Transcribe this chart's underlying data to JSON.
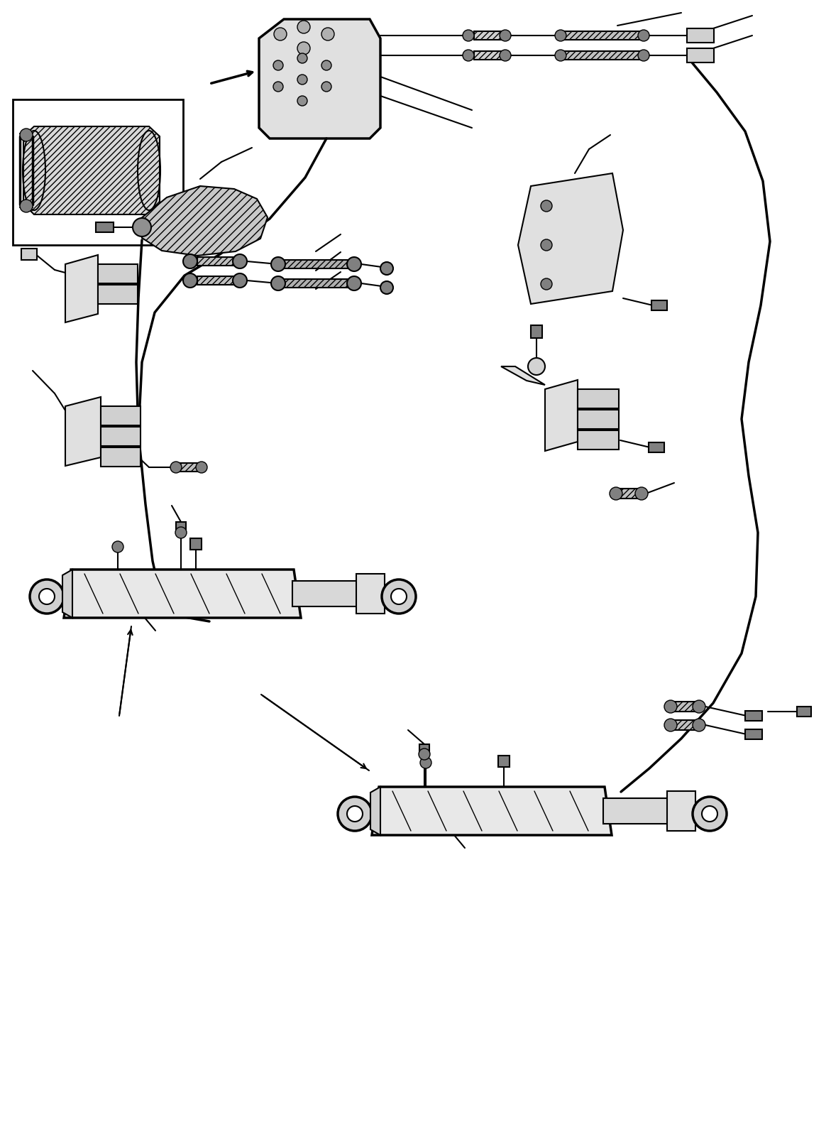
{
  "bg_color": "#ffffff",
  "line_color": "#000000",
  "fig_width": 11.71,
  "fig_height": 15.87,
  "dpi": 100
}
